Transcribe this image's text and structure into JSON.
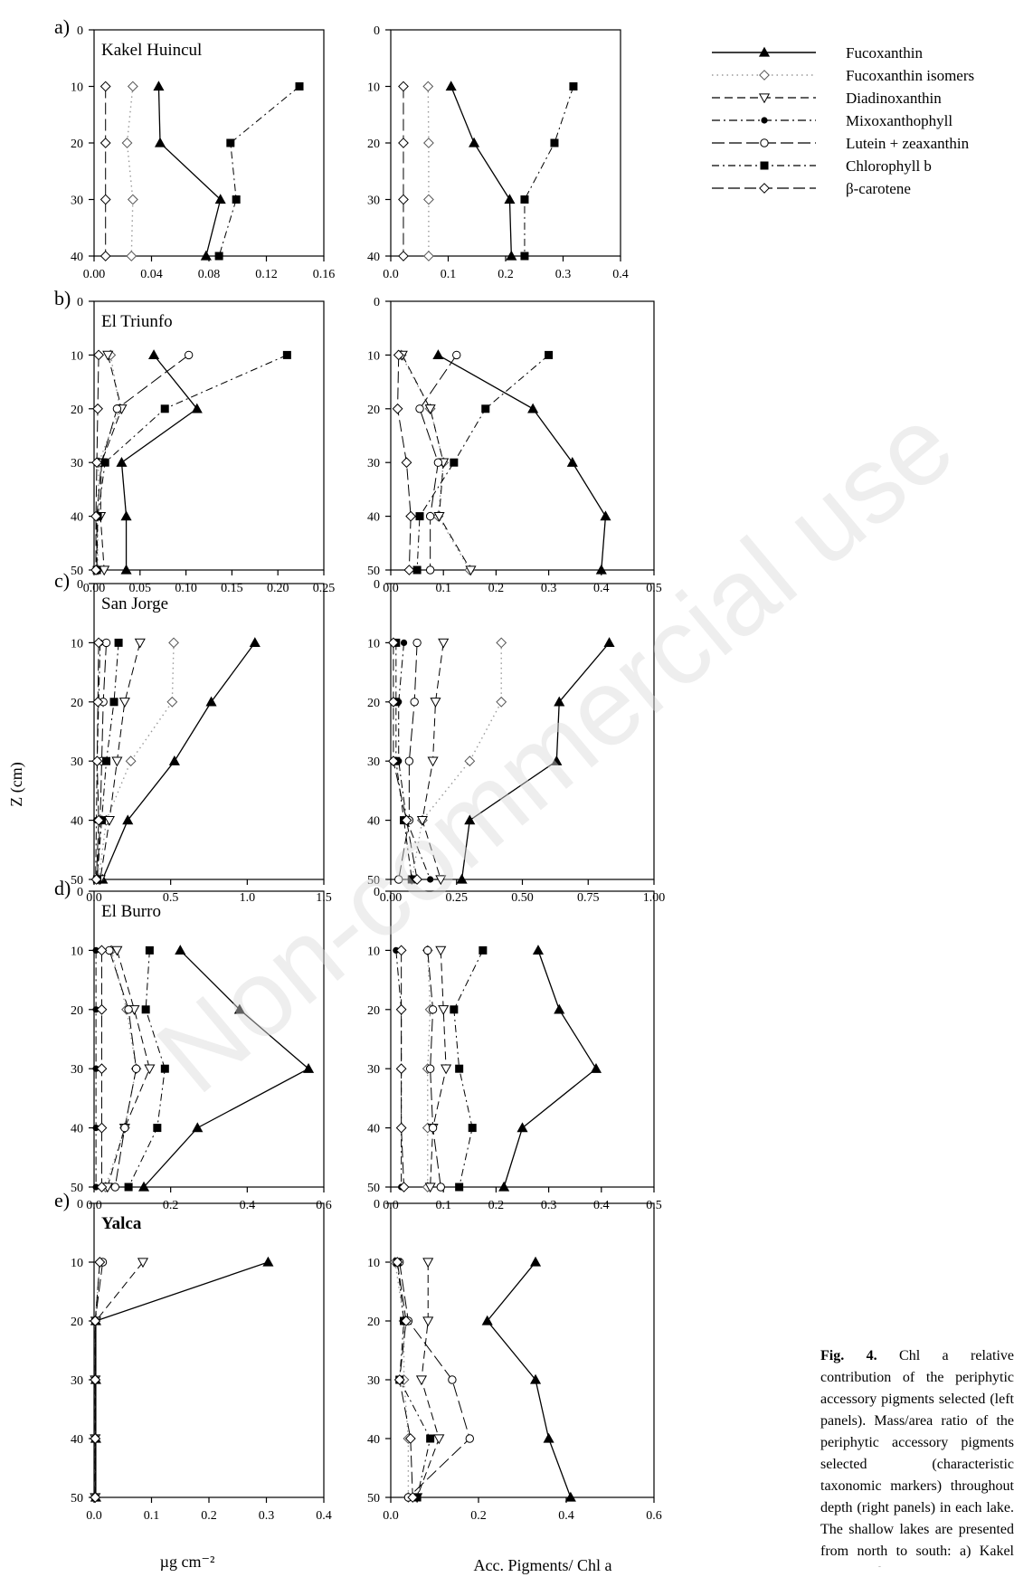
{
  "figure": {
    "y_axis_title": "Z (cm)",
    "x_axis_title_left": "µg cm⁻²",
    "x_axis_title_right": "Acc. Pigments/ Chl a",
    "watermark": "Non-commercial use",
    "caption": {
      "label": "Fig. 4.",
      "text": "Chl a relative contribution of the periphytic accessory pigments selected (left panels). Mass/area ratio of the periphytic accessory pigments selected (characteristic taxonomic markers) throughout depth (right panels) in each lake. The shallow lakes are presented from north to south: a) Kakel Huincul; b) El Triunfo; c) San Jorge; d) El Burro; e) Yalca. Note the different scales of the X-axes."
    }
  },
  "legend": [
    {
      "name": "Fucoxanthin",
      "key": "fuco"
    },
    {
      "name": "Fucoxanthin isomers",
      "key": "fucoiso"
    },
    {
      "name": "Diadinoxanthin",
      "key": "diad"
    },
    {
      "name": "Mixoxanthophyll",
      "key": "mixo"
    },
    {
      "name": "Lutein + zeaxanthin",
      "key": "lut"
    },
    {
      "name": "Chlorophyll b",
      "key": "chlb"
    },
    {
      "name": "β-carotene",
      "key": "bcar"
    }
  ],
  "styles": {
    "fuco": {
      "dash": "",
      "marker": "tri",
      "color": "#000000",
      "sw": 1.3
    },
    "fucoiso": {
      "dash": "1.5 4",
      "marker": "dia",
      "color": "#9a9a9a",
      "sw": 1.4
    },
    "diad": {
      "dash": "9 5",
      "marker": "itri",
      "color": "#000000",
      "sw": 1.0
    },
    "mixo": {
      "dash": "9 4 2 4",
      "marker": "dot",
      "color": "#000000",
      "sw": 1.0
    },
    "lut": {
      "dash": "14 5",
      "marker": "ocirc",
      "color": "#000000",
      "sw": 1.0
    },
    "chlb": {
      "dash": "8 4 2 4",
      "marker": "sq",
      "color": "#000000",
      "sw": 1.0
    },
    "bcar": {
      "dash": "13 5",
      "marker": "dia",
      "color": "#000000",
      "sw": 1.0
    }
  },
  "chart_data": [
    {
      "panel": "a",
      "site": "Kakel Huincul",
      "side": "left",
      "type": "line",
      "xlim": [
        0,
        0.16
      ],
      "ylim": [
        0,
        40
      ],
      "xticks": [
        0.0,
        0.04,
        0.08,
        0.12,
        0.16
      ],
      "xtick_labels": [
        "0.00",
        "0.04",
        "0.08",
        "0.12",
        "0.16"
      ],
      "yticks": [
        0,
        10,
        20,
        30,
        40
      ],
      "depths": [
        10,
        20,
        30,
        40
      ],
      "series": [
        {
          "key": "fuco",
          "x": [
            0.045,
            0.046,
            0.088,
            0.078
          ]
        },
        {
          "key": "fucoiso",
          "x": [
            0.027,
            0.023,
            0.027,
            0.026
          ]
        },
        {
          "key": "chlb",
          "x": [
            0.143,
            0.095,
            0.099,
            0.087
          ]
        },
        {
          "key": "bcar",
          "x": [
            0.008,
            0.008,
            0.008,
            0.008
          ]
        }
      ]
    },
    {
      "panel": "a",
      "site": "",
      "side": "right",
      "type": "line",
      "xlim": [
        0,
        0.4
      ],
      "ylim": [
        0,
        40
      ],
      "xticks": [
        0.0,
        0.1,
        0.2,
        0.3,
        0.4
      ],
      "xtick_labels": [
        "0.0",
        "0.1",
        "0.2",
        "0.3",
        "0.4"
      ],
      "yticks": [
        0,
        10,
        20,
        30,
        40
      ],
      "depths": [
        10,
        20,
        30,
        40
      ],
      "series": [
        {
          "key": "fuco",
          "x": [
            0.105,
            0.145,
            0.207,
            0.21
          ]
        },
        {
          "key": "fucoiso",
          "x": [
            0.065,
            0.066,
            0.066,
            0.066
          ]
        },
        {
          "key": "chlb",
          "x": [
            0.318,
            0.285,
            0.233,
            0.233
          ]
        },
        {
          "key": "bcar",
          "x": [
            0.022,
            0.022,
            0.022,
            0.022
          ]
        }
      ]
    },
    {
      "panel": "b",
      "site": "El Triunfo",
      "side": "left",
      "type": "line",
      "xlim": [
        0,
        0.25
      ],
      "ylim": [
        0,
        50
      ],
      "xticks": [
        0.0,
        0.05,
        0.1,
        0.15,
        0.2,
        0.25
      ],
      "xtick_labels": [
        "0.00",
        "0.05",
        "0.10",
        "0.15",
        "0.20",
        "0.25"
      ],
      "yticks": [
        0,
        10,
        20,
        30,
        40,
        50
      ],
      "depths": [
        10,
        20,
        30,
        40,
        50
      ],
      "series": [
        {
          "key": "fuco",
          "x": [
            0.065,
            0.112,
            0.03,
            0.035,
            0.035
          ]
        },
        {
          "key": "fucoiso",
          "x": [
            0.018,
            0.028,
            0.005,
            0.004,
            0.004
          ]
        },
        {
          "key": "diad",
          "x": [
            0.015,
            0.03,
            0.008,
            0.007,
            0.011
          ]
        },
        {
          "key": "lut",
          "x": [
            0.103,
            0.025,
            0.008,
            0.003,
            0.003
          ]
        },
        {
          "key": "chlb",
          "x": [
            0.21,
            0.077,
            0.012,
            0.004,
            0.003
          ]
        },
        {
          "key": "bcar",
          "x": [
            0.005,
            0.004,
            0.003,
            0.002,
            0.002
          ]
        }
      ]
    },
    {
      "panel": "b",
      "site": "",
      "side": "right",
      "type": "line",
      "xlim": [
        0,
        0.5
      ],
      "ylim": [
        0,
        50
      ],
      "xticks": [
        0.0,
        0.1,
        0.2,
        0.3,
        0.4,
        0.5
      ],
      "xtick_labels": [
        "0.0",
        "0.1",
        "0.2",
        "0.3",
        "0.4",
        "0.5"
      ],
      "yticks": [
        0,
        10,
        20,
        30,
        40,
        50
      ],
      "depths": [
        10,
        20,
        30,
        40,
        50
      ],
      "series": [
        {
          "key": "fuco",
          "x": [
            0.09,
            0.27,
            0.345,
            0.408,
            0.4
          ]
        },
        {
          "key": "fucoiso",
          "x": [
            0.02,
            0.075,
            0.1,
            0.09,
            0.15
          ]
        },
        {
          "key": "diad",
          "x": [
            0.022,
            0.075,
            0.1,
            0.092,
            0.152
          ]
        },
        {
          "key": "lut",
          "x": [
            0.125,
            0.055,
            0.09,
            0.075,
            0.075
          ]
        },
        {
          "key": "chlb",
          "x": [
            0.3,
            0.18,
            0.12,
            0.055,
            0.05
          ]
        },
        {
          "key": "bcar",
          "x": [
            0.015,
            0.013,
            0.03,
            0.038,
            0.035
          ]
        }
      ]
    },
    {
      "panel": "c",
      "site": "San Jorge",
      "side": "left",
      "type": "line",
      "xlim": [
        0,
        1.5
      ],
      "ylim": [
        0,
        50
      ],
      "xticks": [
        0.0,
        0.5,
        1.0,
        1.5
      ],
      "xtick_labels": [
        "0.0",
        "0.5",
        "1.0",
        "1.5"
      ],
      "yticks": [
        0,
        10,
        20,
        30,
        40,
        50
      ],
      "depths": [
        10,
        20,
        30,
        40,
        50
      ],
      "series": [
        {
          "key": "fuco",
          "x": [
            1.05,
            0.765,
            0.525,
            0.22,
            0.055
          ]
        },
        {
          "key": "fucoiso",
          "x": [
            0.52,
            0.51,
            0.24,
            0.08,
            0.03
          ]
        },
        {
          "key": "diad",
          "x": [
            0.3,
            0.2,
            0.15,
            0.1,
            0.04
          ]
        },
        {
          "key": "mixo",
          "x": [
            0.04,
            0.03,
            0.02,
            0.015,
            0.01
          ]
        },
        {
          "key": "lut",
          "x": [
            0.08,
            0.06,
            0.05,
            0.04,
            0.02
          ]
        },
        {
          "key": "chlb",
          "x": [
            0.16,
            0.13,
            0.08,
            0.05,
            0.02
          ]
        },
        {
          "key": "bcar",
          "x": [
            0.03,
            0.025,
            0.02,
            0.03,
            0.015
          ]
        }
      ]
    },
    {
      "panel": "c",
      "site": "",
      "side": "right",
      "type": "line",
      "xlim": [
        0,
        1.0
      ],
      "ylim": [
        0,
        50
      ],
      "xticks": [
        0.0,
        0.25,
        0.5,
        0.75,
        1.0
      ],
      "xtick_labels": [
        "0.00",
        "0.25",
        "0.50",
        "0.75",
        "1.00"
      ],
      "yticks": [
        0,
        10,
        20,
        30,
        40,
        50
      ],
      "depths": [
        10,
        20,
        30,
        40,
        50
      ],
      "series": [
        {
          "key": "fuco",
          "x": [
            0.83,
            0.64,
            0.63,
            0.3,
            0.27
          ]
        },
        {
          "key": "fucoiso",
          "x": [
            0.42,
            0.42,
            0.3,
            0.12,
            0.08
          ]
        },
        {
          "key": "diad",
          "x": [
            0.2,
            0.17,
            0.16,
            0.12,
            0.19
          ]
        },
        {
          "key": "mixo",
          "x": [
            0.05,
            0.03,
            0.03,
            0.06,
            0.15
          ]
        },
        {
          "key": "lut",
          "x": [
            0.1,
            0.09,
            0.07,
            0.07,
            0.03
          ]
        },
        {
          "key": "chlb",
          "x": [
            0.02,
            0.02,
            0.02,
            0.05,
            0.08
          ]
        },
        {
          "key": "bcar",
          "x": [
            0.01,
            0.01,
            0.01,
            0.06,
            0.1
          ]
        }
      ]
    },
    {
      "panel": "d",
      "site": "El Burro",
      "side": "left",
      "type": "line",
      "xlim": [
        0,
        0.6
      ],
      "ylim": [
        0,
        50
      ],
      "xticks": [
        0.0,
        0.2,
        0.4,
        0.6
      ],
      "xtick_labels": [
        "0.0",
        "0.2",
        "0.4",
        "0.6"
      ],
      "yticks": [
        0,
        10,
        20,
        30,
        40,
        50
      ],
      "depths": [
        10,
        20,
        30,
        40,
        50
      ],
      "series": [
        {
          "key": "fuco",
          "x": [
            0.225,
            0.38,
            0.56,
            0.27,
            0.13
          ]
        },
        {
          "key": "fucoiso",
          "x": [
            0.045,
            0.085,
            0.11,
            0.08,
            0.03
          ]
        },
        {
          "key": "diad",
          "x": [
            0.06,
            0.105,
            0.145,
            0.08,
            0.035
          ]
        },
        {
          "key": "mixo",
          "x": [
            0.005,
            0.005,
            0.005,
            0.005,
            0.005
          ]
        },
        {
          "key": "lut",
          "x": [
            0.04,
            0.09,
            0.11,
            0.08,
            0.055
          ]
        },
        {
          "key": "chlb",
          "x": [
            0.145,
            0.135,
            0.185,
            0.165,
            0.09
          ]
        },
        {
          "key": "bcar",
          "x": [
            0.02,
            0.02,
            0.02,
            0.02,
            0.02
          ]
        }
      ]
    },
    {
      "panel": "d",
      "site": "",
      "side": "right",
      "type": "line",
      "xlim": [
        0,
        0.5
      ],
      "ylim": [
        0,
        50
      ],
      "xticks": [
        0.0,
        0.1,
        0.2,
        0.3,
        0.4,
        0.5
      ],
      "xtick_labels": [
        "0.0",
        "0.1",
        "0.2",
        "0.3",
        "0.4",
        "0.5"
      ],
      "yticks": [
        0,
        10,
        20,
        30,
        40,
        50
      ],
      "depths": [
        10,
        20,
        30,
        40,
        50
      ],
      "series": [
        {
          "key": "fuco",
          "x": [
            0.28,
            0.32,
            0.39,
            0.25,
            0.215
          ]
        },
        {
          "key": "fucoiso",
          "x": [
            0.07,
            0.075,
            0.07,
            0.07,
            0.07
          ]
        },
        {
          "key": "diad",
          "x": [
            0.095,
            0.1,
            0.105,
            0.08,
            0.075
          ]
        },
        {
          "key": "mixo",
          "x": [
            0.01,
            0.02,
            0.02,
            0.02,
            0.02
          ]
        },
        {
          "key": "lut",
          "x": [
            0.07,
            0.08,
            0.075,
            0.08,
            0.095
          ]
        },
        {
          "key": "chlb",
          "x": [
            0.175,
            0.12,
            0.13,
            0.155,
            0.13
          ]
        },
        {
          "key": "bcar",
          "x": [
            0.02,
            0.02,
            0.02,
            0.02,
            0.025
          ]
        }
      ]
    },
    {
      "panel": "e",
      "site": "Yalca",
      "side": "left",
      "type": "line",
      "xlim": [
        0,
        0.4
      ],
      "ylim": [
        0,
        50
      ],
      "xticks": [
        0.0,
        0.1,
        0.2,
        0.3,
        0.4
      ],
      "xtick_labels": [
        "0.0",
        "0.1",
        "0.2",
        "0.3",
        "0.4"
      ],
      "yticks": [
        0,
        10,
        20,
        30,
        40,
        50
      ],
      "depths": [
        10,
        20,
        30,
        40,
        50
      ],
      "series": [
        {
          "key": "fuco",
          "x": [
            0.303,
            0.003,
            0.003,
            0.003,
            0.003
          ]
        },
        {
          "key": "fucoiso",
          "x": [
            0.01,
            0.002,
            0.002,
            0.002,
            0.002
          ]
        },
        {
          "key": "diad",
          "x": [
            0.085,
            0.003,
            0.002,
            0.002,
            0.002
          ]
        },
        {
          "key": "lut",
          "x": [
            0.015,
            0.002,
            0.002,
            0.002,
            0.002
          ]
        },
        {
          "key": "bcar",
          "x": [
            0.01,
            0.002,
            0.002,
            0.002,
            0.002
          ]
        }
      ]
    },
    {
      "panel": "e",
      "site": "",
      "side": "right",
      "type": "line",
      "xlim": [
        0,
        0.6
      ],
      "ylim": [
        0,
        50
      ],
      "xticks": [
        0.0,
        0.2,
        0.4,
        0.6
      ],
      "xtick_labels": [
        "0.0",
        "0.2",
        "0.4",
        "0.6"
      ],
      "yticks": [
        0,
        10,
        20,
        30,
        40,
        50
      ],
      "depths": [
        10,
        20,
        30,
        40,
        50
      ],
      "series": [
        {
          "key": "fuco",
          "x": [
            0.33,
            0.22,
            0.33,
            0.36,
            0.41
          ]
        },
        {
          "key": "fucoiso",
          "x": [
            0.01,
            0.03,
            0.03,
            0.04,
            0.04
          ]
        },
        {
          "key": "diad",
          "x": [
            0.085,
            0.085,
            0.07,
            0.11,
            0.06
          ]
        },
        {
          "key": "lut",
          "x": [
            0.02,
            0.04,
            0.14,
            0.18,
            0.04
          ]
        },
        {
          "key": "chlb",
          "x": [
            0.015,
            0.03,
            0.02,
            0.09,
            0.06
          ]
        },
        {
          "key": "bcar",
          "x": [
            0.015,
            0.035,
            0.02,
            0.045,
            0.05
          ]
        }
      ]
    }
  ]
}
